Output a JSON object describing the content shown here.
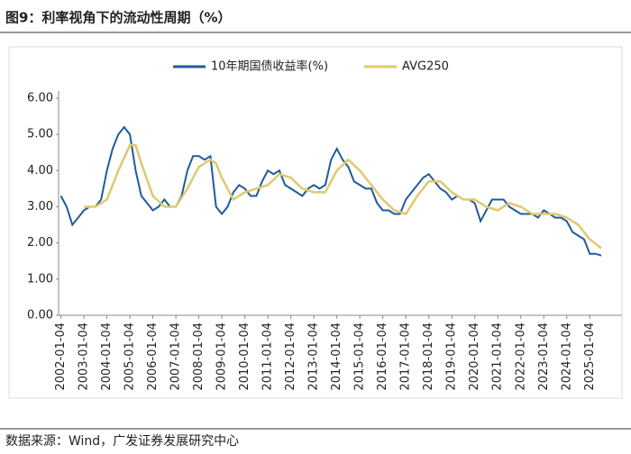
{
  "chart_data": {
    "type": "line",
    "title": "图9：利率视角下的流动性周期（%）",
    "source": "数据来源：Wind，广发证券发展研究中心",
    "legend": "top",
    "grid": false,
    "xlim": [
      2001.9,
      2026.4
    ],
    "ylim": [
      0,
      6
    ],
    "yticks": [
      {
        "value": 0,
        "label": "0.00"
      },
      {
        "value": 1,
        "label": "1.00"
      },
      {
        "value": 2,
        "label": "2.00"
      },
      {
        "value": 3,
        "label": "3.00"
      },
      {
        "value": 4,
        "label": "4.00"
      },
      {
        "value": 5,
        "label": "5.00"
      },
      {
        "value": 6,
        "label": "6.00"
      }
    ],
    "xticks": [
      {
        "value": 2002,
        "label": "2002-01-04"
      },
      {
        "value": 2003,
        "label": "2003-01-04"
      },
      {
        "value": 2004,
        "label": "2004-01-04"
      },
      {
        "value": 2005,
        "label": "2005-01-04"
      },
      {
        "value": 2006,
        "label": "2006-01-04"
      },
      {
        "value": 2007,
        "label": "2007-01-04"
      },
      {
        "value": 2008,
        "label": "2008-01-04"
      },
      {
        "value": 2009,
        "label": "2009-01-04"
      },
      {
        "value": 2010,
        "label": "2010-01-04"
      },
      {
        "value": 2011,
        "label": "2011-01-04"
      },
      {
        "value": 2012,
        "label": "2012-01-04"
      },
      {
        "value": 2013,
        "label": "2013-01-04"
      },
      {
        "value": 2014,
        "label": "2014-01-04"
      },
      {
        "value": 2015,
        "label": "2015-01-04"
      },
      {
        "value": 2016,
        "label": "2016-01-04"
      },
      {
        "value": 2017,
        "label": "2017-01-04"
      },
      {
        "value": 2018,
        "label": "2018-01-04"
      },
      {
        "value": 2019,
        "label": "2019-01-04"
      },
      {
        "value": 2020,
        "label": "2020-01-04"
      },
      {
        "value": 2021,
        "label": "2021-01-04"
      },
      {
        "value": 2022,
        "label": "2022-01-04"
      },
      {
        "value": 2023,
        "label": "2023-01-04"
      },
      {
        "value": 2024,
        "label": "2024-01-04"
      },
      {
        "value": 2025,
        "label": "2025-01-04"
      }
    ],
    "series": [
      {
        "name": "10年期国债收益率(%)",
        "color": "#1f5c99",
        "x": [
          2002,
          2002.25,
          2002.5,
          2002.75,
          2003,
          2003.25,
          2003.5,
          2003.75,
          2004,
          2004.25,
          2004.5,
          2004.75,
          2005,
          2005.25,
          2005.5,
          2005.75,
          2006,
          2006.25,
          2006.5,
          2006.75,
          2007,
          2007.25,
          2007.5,
          2007.75,
          2008,
          2008.25,
          2008.5,
          2008.75,
          2009,
          2009.25,
          2009.5,
          2009.75,
          2010,
          2010.25,
          2010.5,
          2010.75,
          2011,
          2011.25,
          2011.5,
          2011.75,
          2012,
          2012.25,
          2012.5,
          2012.75,
          2013,
          2013.25,
          2013.5,
          2013.75,
          2014,
          2014.25,
          2014.5,
          2014.75,
          2015,
          2015.25,
          2015.5,
          2015.75,
          2016,
          2016.25,
          2016.5,
          2016.75,
          2017,
          2017.25,
          2017.5,
          2017.75,
          2018,
          2018.25,
          2018.5,
          2018.75,
          2019,
          2019.25,
          2019.5,
          2019.75,
          2020,
          2020.25,
          2020.5,
          2020.75,
          2021,
          2021.25,
          2021.5,
          2021.75,
          2022,
          2022.25,
          2022.5,
          2022.75,
          2023,
          2023.25,
          2023.5,
          2023.75,
          2024,
          2024.25,
          2024.5,
          2024.75,
          2025,
          2025.25,
          2025.5
        ],
        "values": [
          3.3,
          3.0,
          2.5,
          2.7,
          2.9,
          3.0,
          3.0,
          3.2,
          4.0,
          4.6,
          5.0,
          5.2,
          5.0,
          4.0,
          3.3,
          3.1,
          2.9,
          3.0,
          3.2,
          3.0,
          3.0,
          3.3,
          4.0,
          4.4,
          4.4,
          4.3,
          4.4,
          3.0,
          2.8,
          3.0,
          3.4,
          3.6,
          3.5,
          3.3,
          3.3,
          3.7,
          4.0,
          3.9,
          4.0,
          3.6,
          3.5,
          3.4,
          3.3,
          3.5,
          3.6,
          3.5,
          3.6,
          4.3,
          4.6,
          4.3,
          4.1,
          3.7,
          3.6,
          3.5,
          3.5,
          3.1,
          2.9,
          2.9,
          2.8,
          2.8,
          3.2,
          3.4,
          3.6,
          3.8,
          3.9,
          3.7,
          3.5,
          3.4,
          3.2,
          3.3,
          3.2,
          3.2,
          3.1,
          2.6,
          2.9,
          3.2,
          3.2,
          3.2,
          3.0,
          2.9,
          2.8,
          2.8,
          2.8,
          2.7,
          2.9,
          2.8,
          2.7,
          2.7,
          2.6,
          2.3,
          2.2,
          2.1,
          1.7,
          1.7,
          1.65
        ]
      },
      {
        "name": "AVG250",
        "color": "#e0c870",
        "x": [
          2003,
          2003.5,
          2004,
          2004.5,
          2005,
          2005.25,
          2005.5,
          2006,
          2006.5,
          2007,
          2007.5,
          2008,
          2008.5,
          2008.75,
          2009,
          2009.5,
          2010,
          2010.5,
          2011,
          2011.5,
          2012,
          2012.5,
          2013,
          2013.5,
          2014,
          2014.5,
          2015,
          2015.5,
          2016,
          2016.5,
          2017,
          2017.5,
          2018,
          2018.5,
          2019,
          2019.5,
          2020,
          2020.5,
          2021,
          2021.5,
          2022,
          2022.5,
          2023,
          2023.5,
          2024,
          2024.5,
          2025,
          2025.5
        ],
        "values": [
          3.0,
          3.0,
          3.2,
          4.0,
          4.7,
          4.7,
          4.2,
          3.3,
          3.0,
          3.0,
          3.5,
          4.1,
          4.3,
          4.2,
          3.8,
          3.2,
          3.4,
          3.5,
          3.6,
          3.9,
          3.8,
          3.5,
          3.4,
          3.4,
          4.0,
          4.3,
          4.0,
          3.6,
          3.2,
          2.9,
          2.8,
          3.3,
          3.7,
          3.7,
          3.4,
          3.2,
          3.2,
          3.0,
          2.9,
          3.1,
          3.0,
          2.8,
          2.8,
          2.8,
          2.7,
          2.5,
          2.1,
          1.85
        ]
      }
    ]
  }
}
